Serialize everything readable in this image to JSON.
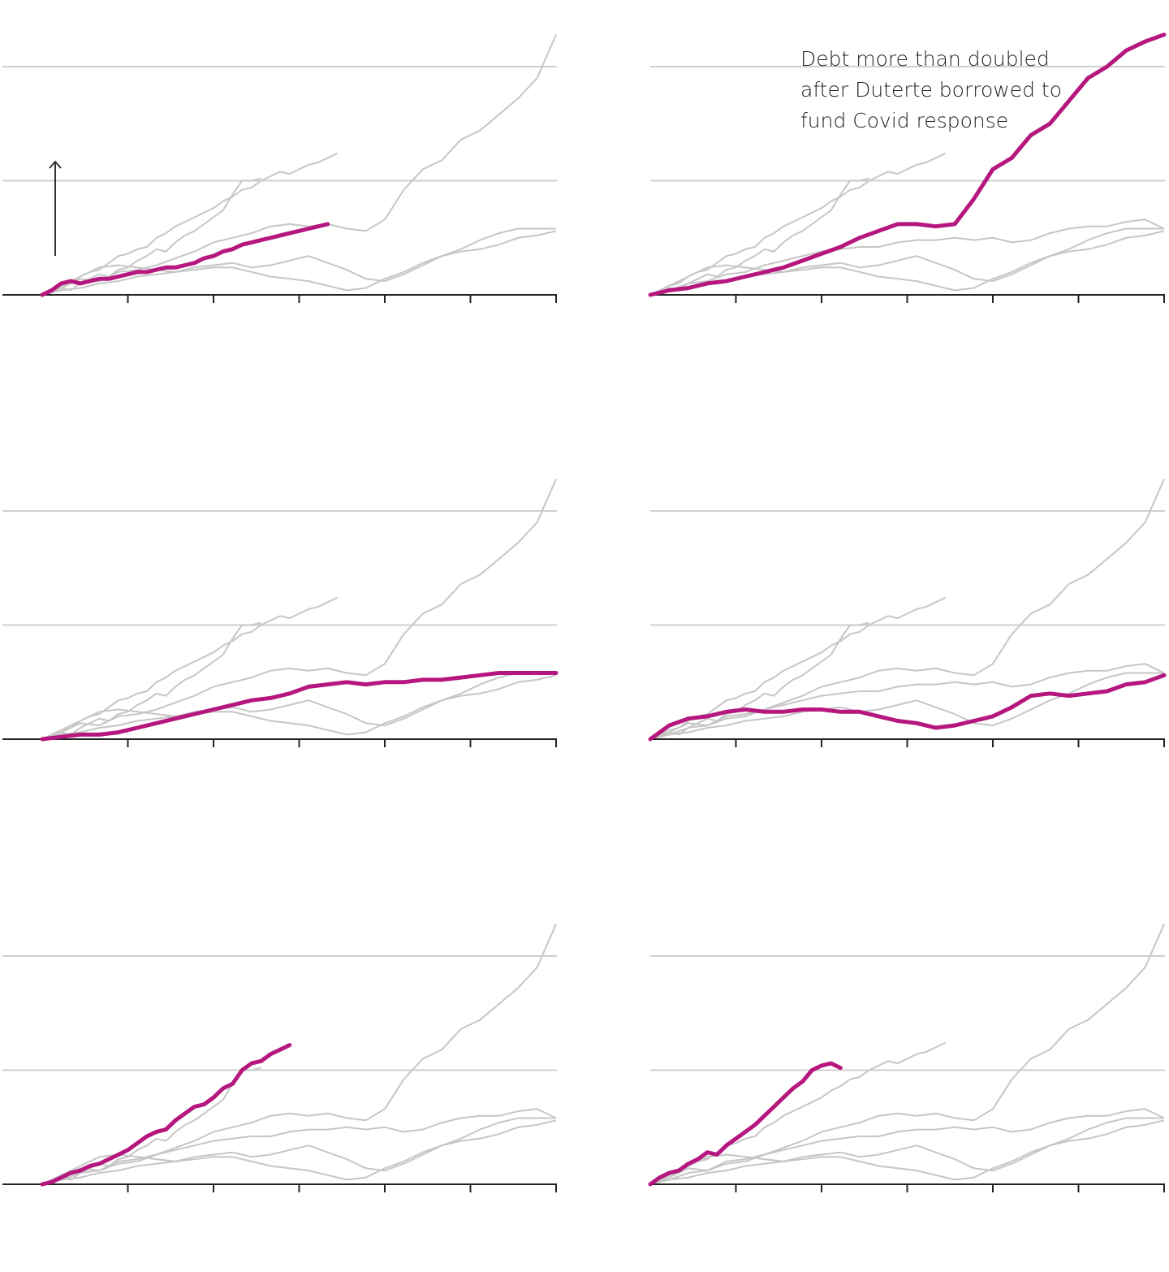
{
  "annotation": "Debt more than doubled after Duterte borrowed to fund Covid response",
  "colors": {
    "highlight": "#b5177e",
    "context": "#c6c6c6",
    "grid": "#cfcfcf",
    "axis": "#222222",
    "arrow": "#333333"
  },
  "icons": {
    "arrow": "up-arrow-icon"
  },
  "chart_data": {
    "type": "line",
    "layout": "small-multiples-3x2",
    "ylim": [
      0,
      1.1
    ],
    "gridlines": [
      0.5,
      1.0
    ],
    "x_ticks": [
      9,
      18,
      27,
      36,
      45,
      54
    ],
    "xlim": [
      -4,
      54
    ],
    "context_series": [
      [
        [
          0,
          0
        ],
        [
          1,
          0.01
        ],
        [
          2,
          0.03
        ],
        [
          3,
          0.02
        ],
        [
          4,
          0.05
        ],
        [
          5,
          0.07
        ],
        [
          6,
          0.09
        ],
        [
          7,
          0.08
        ],
        [
          8,
          0.11
        ],
        [
          9,
          0.12
        ],
        [
          10,
          0.15
        ],
        [
          11,
          0.17
        ],
        [
          12,
          0.2
        ],
        [
          13,
          0.19
        ],
        [
          14,
          0.23
        ],
        [
          15,
          0.26
        ],
        [
          16,
          0.28
        ],
        [
          17,
          0.31
        ],
        [
          18,
          0.34
        ],
        [
          19,
          0.37
        ],
        [
          20,
          0.44
        ],
        [
          21,
          0.5
        ],
        [
          22,
          0.5
        ],
        [
          23,
          0.51
        ]
      ],
      [
        [
          0,
          0
        ],
        [
          1,
          0.02
        ],
        [
          2,
          0.04
        ],
        [
          3,
          0.05
        ],
        [
          4,
          0.08
        ],
        [
          5,
          0.1
        ],
        [
          6,
          0.11
        ],
        [
          7,
          0.14
        ],
        [
          8,
          0.17
        ],
        [
          9,
          0.18
        ],
        [
          10,
          0.2
        ],
        [
          11,
          0.21
        ],
        [
          12,
          0.25
        ],
        [
          13,
          0.27
        ],
        [
          14,
          0.3
        ],
        [
          15,
          0.32
        ],
        [
          16,
          0.34
        ],
        [
          17,
          0.36
        ],
        [
          18,
          0.38
        ],
        [
          19,
          0.41
        ],
        [
          20,
          0.43
        ],
        [
          21,
          0.46
        ],
        [
          22,
          0.47
        ],
        [
          23,
          0.5
        ],
        [
          24,
          0.52
        ],
        [
          25,
          0.54
        ],
        [
          26,
          0.53
        ],
        [
          27,
          0.55
        ],
        [
          28,
          0.57
        ],
        [
          29,
          0.58
        ],
        [
          30,
          0.6
        ],
        [
          31,
          0.62
        ]
      ],
      [
        [
          0,
          0
        ],
        [
          2,
          0.02
        ],
        [
          4,
          0.03
        ],
        [
          6,
          0.05
        ],
        [
          8,
          0.06
        ],
        [
          10,
          0.08
        ],
        [
          12,
          0.09
        ],
        [
          14,
          0.1
        ],
        [
          16,
          0.12
        ],
        [
          18,
          0.13
        ],
        [
          20,
          0.14
        ],
        [
          22,
          0.12
        ],
        [
          24,
          0.13
        ],
        [
          26,
          0.15
        ],
        [
          28,
          0.17
        ],
        [
          30,
          0.14
        ],
        [
          32,
          0.11
        ],
        [
          34,
          0.07
        ],
        [
          36,
          0.06
        ],
        [
          38,
          0.09
        ],
        [
          40,
          0.13
        ],
        [
          42,
          0.17
        ],
        [
          44,
          0.2
        ],
        [
          46,
          0.24
        ],
        [
          48,
          0.27
        ],
        [
          50,
          0.29
        ],
        [
          52,
          0.29
        ],
        [
          54,
          0.29
        ]
      ],
      [
        [
          0,
          0
        ],
        [
          2,
          0.02
        ],
        [
          4,
          0.05
        ],
        [
          6,
          0.06
        ],
        [
          8,
          0.09
        ],
        [
          10,
          0.1
        ],
        [
          12,
          0.13
        ],
        [
          14,
          0.15
        ],
        [
          16,
          0.17
        ],
        [
          18,
          0.19
        ],
        [
          20,
          0.2
        ],
        [
          22,
          0.21
        ],
        [
          24,
          0.21
        ],
        [
          26,
          0.23
        ],
        [
          28,
          0.24
        ],
        [
          30,
          0.24
        ],
        [
          32,
          0.25
        ],
        [
          34,
          0.24
        ],
        [
          36,
          0.25
        ],
        [
          38,
          0.23
        ],
        [
          40,
          0.24
        ],
        [
          42,
          0.27
        ],
        [
          44,
          0.29
        ],
        [
          46,
          0.3
        ],
        [
          48,
          0.3
        ],
        [
          50,
          0.32
        ],
        [
          52,
          0.33
        ],
        [
          54,
          0.29
        ]
      ],
      [
        [
          0,
          0
        ],
        [
          2,
          0.03
        ],
        [
          4,
          0.07
        ],
        [
          6,
          0.06
        ],
        [
          8,
          0.1
        ],
        [
          10,
          0.11
        ],
        [
          12,
          0.13
        ],
        [
          14,
          0.16
        ],
        [
          16,
          0.19
        ],
        [
          18,
          0.23
        ],
        [
          20,
          0.25
        ],
        [
          22,
          0.27
        ],
        [
          24,
          0.3
        ],
        [
          26,
          0.31
        ],
        [
          28,
          0.3
        ],
        [
          30,
          0.31
        ],
        [
          32,
          0.29
        ],
        [
          34,
          0.28
        ],
        [
          36,
          0.33
        ],
        [
          38,
          0.46
        ],
        [
          40,
          0.55
        ],
        [
          42,
          0.59
        ],
        [
          44,
          0.68
        ],
        [
          46,
          0.72
        ],
        [
          48,
          0.79
        ],
        [
          50,
          0.86
        ],
        [
          52,
          0.95
        ],
        [
          54,
          1.14
        ]
      ],
      [
        [
          0,
          0
        ],
        [
          2,
          0.04
        ],
        [
          4,
          0.08
        ],
        [
          6,
          0.12
        ],
        [
          8,
          0.13
        ],
        [
          10,
          0.12
        ],
        [
          12,
          0.11
        ],
        [
          14,
          0.1
        ],
        [
          16,
          0.11
        ],
        [
          18,
          0.12
        ],
        [
          20,
          0.12
        ],
        [
          22,
          0.1
        ],
        [
          24,
          0.08
        ],
        [
          26,
          0.07
        ],
        [
          28,
          0.06
        ],
        [
          30,
          0.04
        ],
        [
          32,
          0.02
        ],
        [
          34,
          0.03
        ],
        [
          36,
          0.07
        ],
        [
          38,
          0.1
        ],
        [
          40,
          0.14
        ],
        [
          42,
          0.17
        ],
        [
          44,
          0.19
        ],
        [
          46,
          0.2
        ],
        [
          48,
          0.22
        ],
        [
          50,
          0.25
        ],
        [
          52,
          0.26
        ],
        [
          54,
          0.28
        ]
      ]
    ],
    "panels": [
      {
        "name": "panel-1",
        "highlight_index": 3,
        "highlight": [
          [
            0,
            0
          ],
          [
            1,
            0.02
          ],
          [
            2,
            0.05
          ],
          [
            3,
            0.06
          ],
          [
            4,
            0.05
          ],
          [
            5,
            0.06
          ],
          [
            6,
            0.07
          ],
          [
            7,
            0.07
          ],
          [
            8,
            0.08
          ],
          [
            9,
            0.09
          ],
          [
            10,
            0.1
          ],
          [
            11,
            0.1
          ],
          [
            12,
            0.11
          ],
          [
            13,
            0.12
          ],
          [
            14,
            0.12
          ],
          [
            15,
            0.13
          ],
          [
            16,
            0.14
          ],
          [
            17,
            0.16
          ],
          [
            18,
            0.17
          ],
          [
            19,
            0.19
          ],
          [
            20,
            0.2
          ],
          [
            21,
            0.22
          ],
          [
            22,
            0.23
          ],
          [
            23,
            0.24
          ],
          [
            24,
            0.25
          ],
          [
            25,
            0.26
          ],
          [
            26,
            0.27
          ],
          [
            27,
            0.28
          ],
          [
            28,
            0.29
          ],
          [
            29,
            0.3
          ],
          [
            30,
            0.31
          ]
        ],
        "arrow": true
      },
      {
        "name": "panel-2",
        "highlight_index": 4,
        "highlight": [
          [
            0,
            0
          ],
          [
            2,
            0.02
          ],
          [
            4,
            0.03
          ],
          [
            6,
            0.05
          ],
          [
            8,
            0.06
          ],
          [
            10,
            0.08
          ],
          [
            12,
            0.1
          ],
          [
            14,
            0.12
          ],
          [
            16,
            0.15
          ],
          [
            18,
            0.18
          ],
          [
            20,
            0.21
          ],
          [
            22,
            0.25
          ],
          [
            24,
            0.28
          ],
          [
            26,
            0.31
          ],
          [
            28,
            0.31
          ],
          [
            30,
            0.3
          ],
          [
            32,
            0.31
          ],
          [
            34,
            0.42
          ],
          [
            36,
            0.55
          ],
          [
            38,
            0.6
          ],
          [
            40,
            0.7
          ],
          [
            42,
            0.75
          ],
          [
            44,
            0.85
          ],
          [
            46,
            0.95
          ],
          [
            48,
            1.0
          ],
          [
            50,
            1.07
          ],
          [
            52,
            1.11
          ],
          [
            54,
            1.14
          ]
        ]
      },
      {
        "name": "panel-3",
        "highlight_index": 3,
        "highlight": [
          [
            0,
            0
          ],
          [
            2,
            0.01
          ],
          [
            4,
            0.02
          ],
          [
            6,
            0.02
          ],
          [
            8,
            0.03
          ],
          [
            10,
            0.05
          ],
          [
            12,
            0.07
          ],
          [
            14,
            0.09
          ],
          [
            16,
            0.11
          ],
          [
            18,
            0.13
          ],
          [
            20,
            0.15
          ],
          [
            22,
            0.17
          ],
          [
            24,
            0.18
          ],
          [
            26,
            0.2
          ],
          [
            28,
            0.23
          ],
          [
            30,
            0.24
          ],
          [
            32,
            0.25
          ],
          [
            34,
            0.24
          ],
          [
            36,
            0.25
          ],
          [
            38,
            0.25
          ],
          [
            40,
            0.26
          ],
          [
            42,
            0.26
          ],
          [
            44,
            0.27
          ],
          [
            46,
            0.28
          ],
          [
            48,
            0.29
          ],
          [
            50,
            0.29
          ],
          [
            52,
            0.29
          ],
          [
            54,
            0.29
          ]
        ]
      },
      {
        "name": "panel-4",
        "highlight_index": 5,
        "highlight": [
          [
            0,
            0
          ],
          [
            2,
            0.06
          ],
          [
            4,
            0.09
          ],
          [
            6,
            0.1
          ],
          [
            8,
            0.12
          ],
          [
            10,
            0.13
          ],
          [
            12,
            0.12
          ],
          [
            14,
            0.12
          ],
          [
            16,
            0.13
          ],
          [
            18,
            0.13
          ],
          [
            20,
            0.12
          ],
          [
            22,
            0.12
          ],
          [
            24,
            0.1
          ],
          [
            26,
            0.08
          ],
          [
            28,
            0.07
          ],
          [
            30,
            0.05
          ],
          [
            32,
            0.06
          ],
          [
            34,
            0.08
          ],
          [
            36,
            0.1
          ],
          [
            38,
            0.14
          ],
          [
            40,
            0.19
          ],
          [
            42,
            0.2
          ],
          [
            44,
            0.19
          ],
          [
            46,
            0.2
          ],
          [
            48,
            0.21
          ],
          [
            50,
            0.24
          ],
          [
            52,
            0.25
          ],
          [
            54,
            0.28
          ]
        ]
      },
      {
        "name": "panel-5",
        "highlight_index": 1,
        "highlight": [
          [
            0,
            0
          ],
          [
            1,
            0.01
          ],
          [
            2,
            0.03
          ],
          [
            3,
            0.05
          ],
          [
            4,
            0.06
          ],
          [
            5,
            0.08
          ],
          [
            6,
            0.09
          ],
          [
            7,
            0.11
          ],
          [
            8,
            0.13
          ],
          [
            9,
            0.15
          ],
          [
            10,
            0.18
          ],
          [
            11,
            0.21
          ],
          [
            12,
            0.23
          ],
          [
            13,
            0.24
          ],
          [
            14,
            0.28
          ],
          [
            15,
            0.31
          ],
          [
            16,
            0.34
          ],
          [
            17,
            0.35
          ],
          [
            18,
            0.38
          ],
          [
            19,
            0.42
          ],
          [
            20,
            0.44
          ],
          [
            21,
            0.5
          ],
          [
            22,
            0.53
          ],
          [
            23,
            0.54
          ],
          [
            24,
            0.57
          ],
          [
            25,
            0.59
          ],
          [
            26,
            0.61
          ]
        ]
      },
      {
        "name": "panel-6",
        "highlight_index": 0,
        "highlight": [
          [
            0,
            0
          ],
          [
            1,
            0.03
          ],
          [
            2,
            0.05
          ],
          [
            3,
            0.06
          ],
          [
            4,
            0.09
          ],
          [
            5,
            0.11
          ],
          [
            6,
            0.14
          ],
          [
            7,
            0.13
          ],
          [
            8,
            0.17
          ],
          [
            9,
            0.2
          ],
          [
            10,
            0.23
          ],
          [
            11,
            0.26
          ],
          [
            12,
            0.3
          ],
          [
            13,
            0.34
          ],
          [
            14,
            0.38
          ],
          [
            15,
            0.42
          ],
          [
            16,
            0.45
          ],
          [
            17,
            0.5
          ],
          [
            18,
            0.52
          ],
          [
            19,
            0.53
          ],
          [
            20,
            0.51
          ]
        ]
      }
    ]
  }
}
